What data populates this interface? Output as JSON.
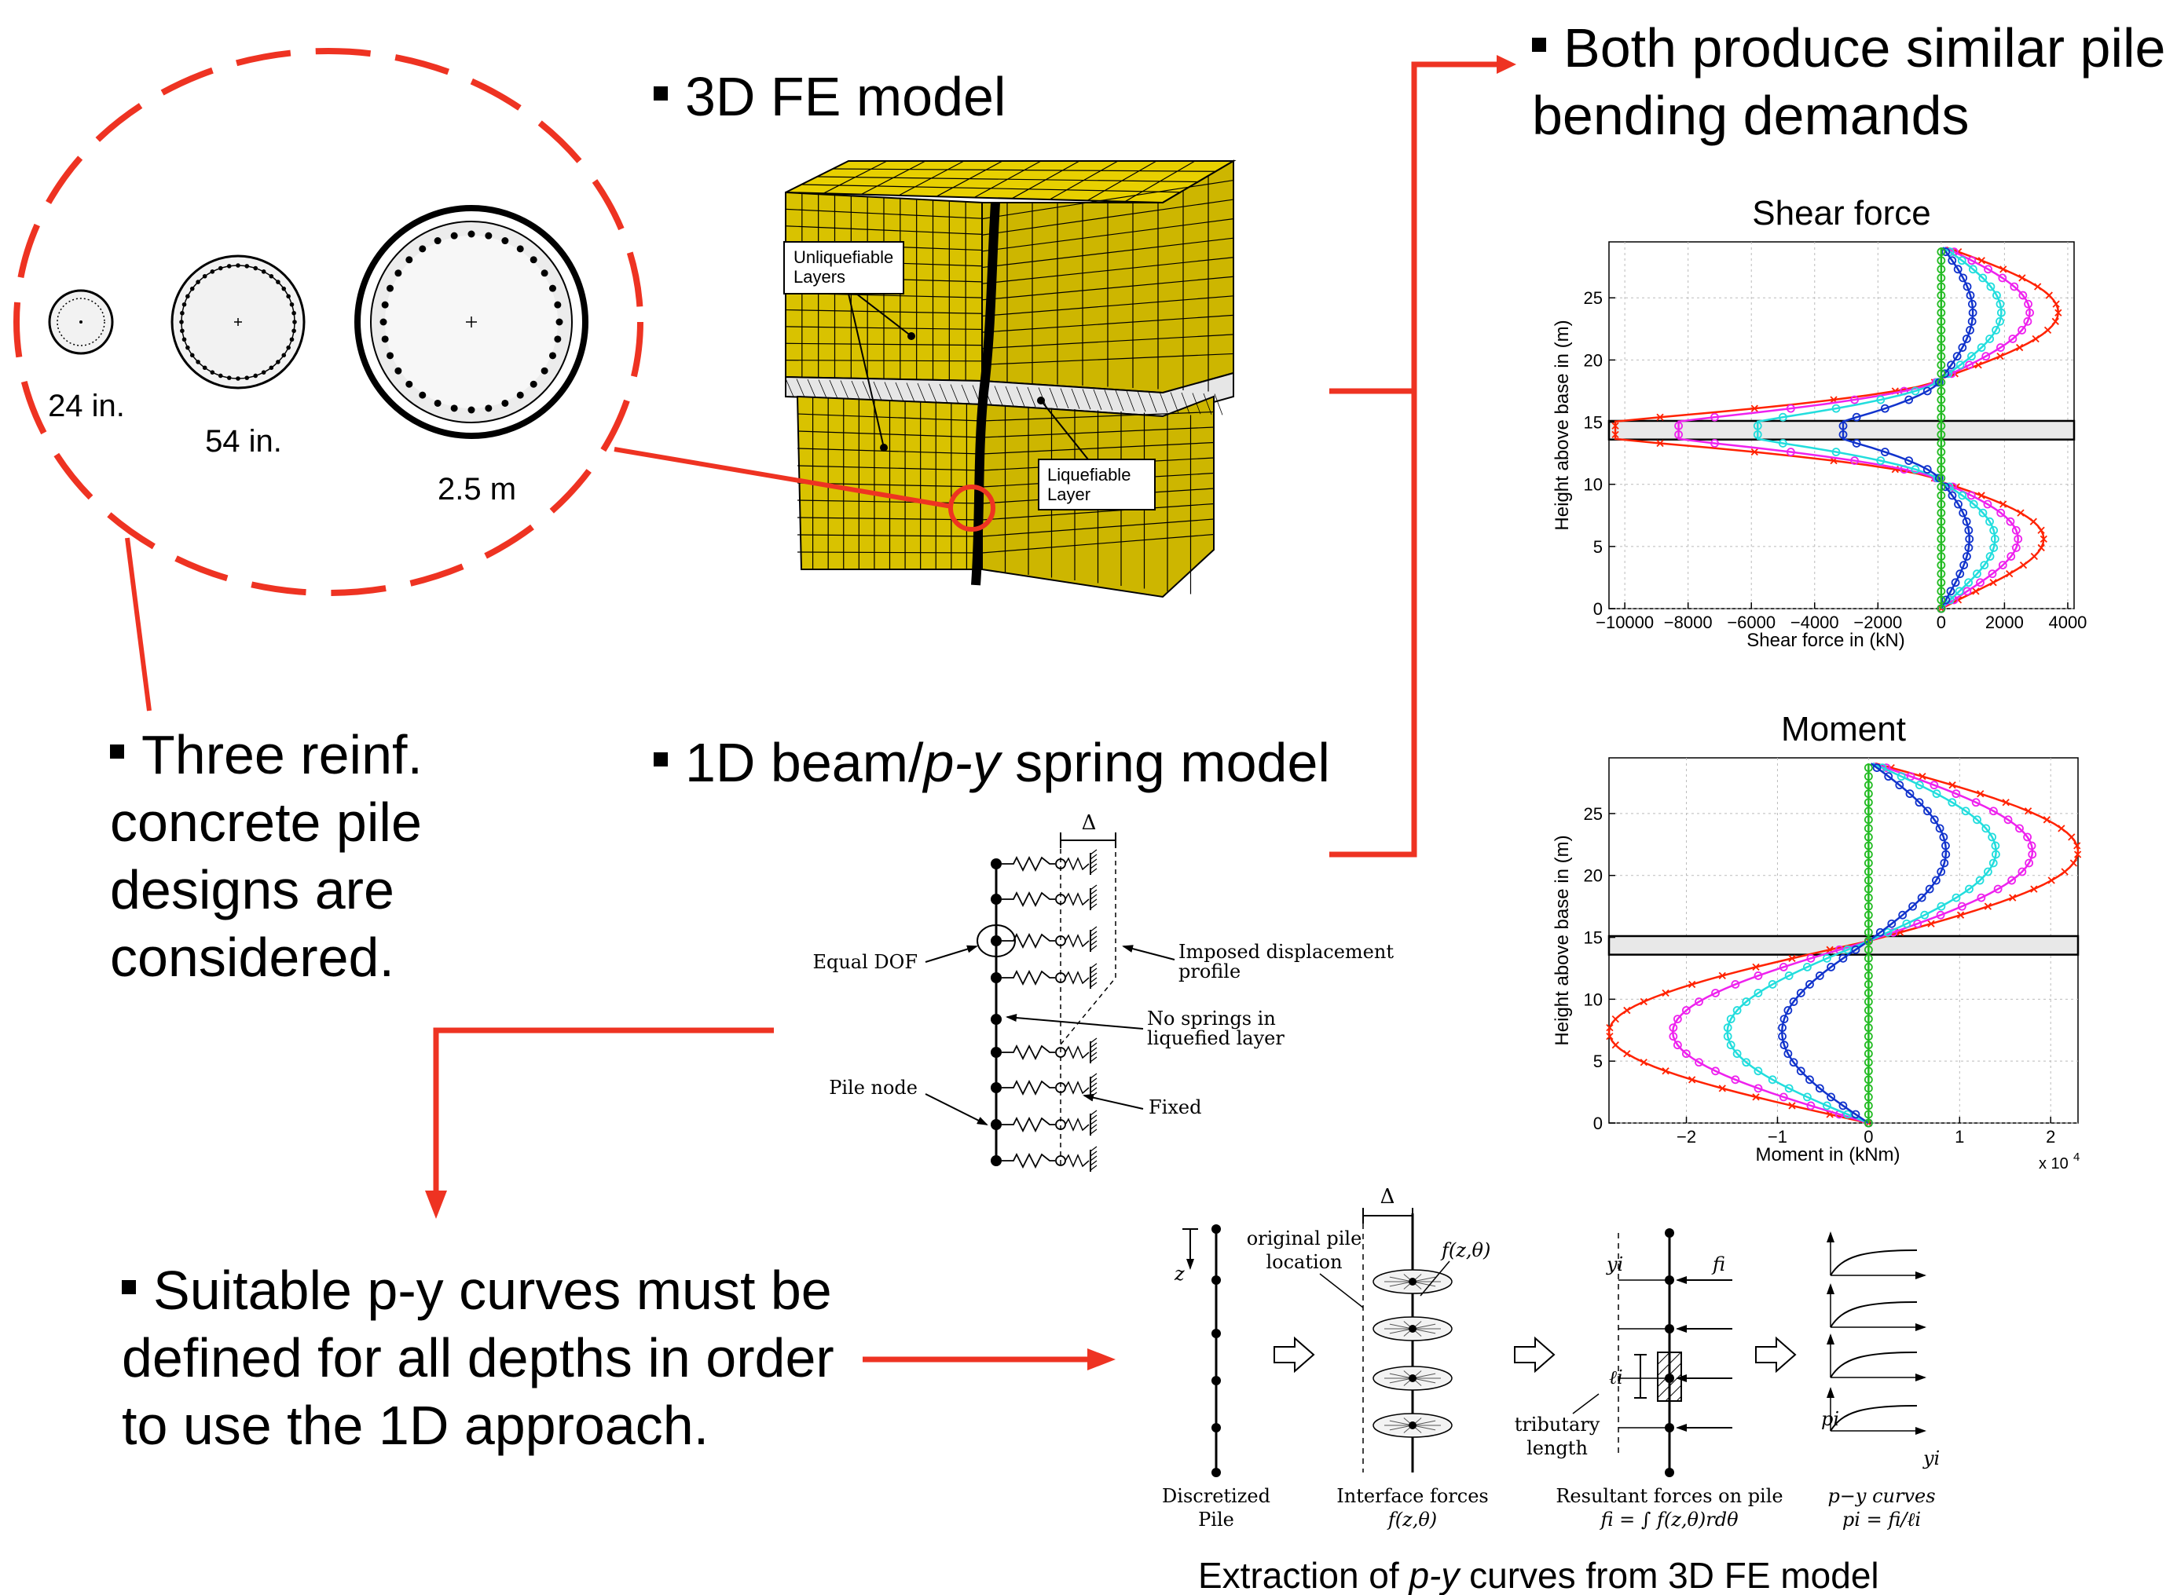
{
  "bullets": {
    "fe_model": "3D FE model",
    "beam_model_pre": "1D beam/",
    "beam_model_py": "p-y",
    "beam_model_post": " spring model",
    "similar_1": "Both produce similar pile",
    "similar_2": "bending demands",
    "three_1": "Three reinf.",
    "three_2": "concrete pile",
    "three_3": "designs are",
    "three_4": "considered.",
    "suitable_1": "Suitable p-y curves must be",
    "suitable_2": "defined for all depths in order",
    "suitable_3": "to use the 1D approach."
  },
  "piles": {
    "small": "24 in.",
    "medium": "54 in.",
    "large": "2.5 m"
  },
  "fe_labels": {
    "unliq_1": "Unliquefiable",
    "unliq_2": "Layers",
    "liq_1": "Liquefiable",
    "liq_2": "Layer"
  },
  "spring_labels": {
    "delta": "Δ",
    "equal_dof": "Equal DOF",
    "imposed_1": "Imposed displacement",
    "imposed_2": "profile",
    "nospring_1": "No springs in",
    "nospring_2": "liquefied layer",
    "pile_node": "Pile node",
    "fixed": "Fixed"
  },
  "extraction": {
    "caption_pre": "Extraction of ",
    "caption_py": "p-y",
    "caption_post": " curves from 3D FE model",
    "z": "z",
    "delta": "Δ",
    "orig_1": "original pile",
    "orig_2": "location",
    "fzt": "f(z,θ)",
    "yi": "yi",
    "fi": "fi",
    "li": "ℓi",
    "trib_1": "tributary",
    "trib_2": "length",
    "pi": "pi",
    "yi2": "yi",
    "disc_1": "Discretized",
    "disc_2": "Pile",
    "iface_1": "Interface forces",
    "iface_2": "f(z,θ)",
    "result_1": "Resultant forces on pile",
    "result_2": "fi = ∫ f(z,θ)rdθ",
    "py_1": "p−y curves",
    "py_2": "pi = fi/ℓi"
  },
  "colors": {
    "accent": "#ee3322",
    "mesh": "#ddc400",
    "mesh_dark": "#b39c00"
  },
  "chart_data": [
    {
      "type": "line",
      "title": "Shear force",
      "xlabel": "Shear force in (kN)",
      "ylabel": "Height above base in (m)",
      "xlim": [
        -10500,
        4200
      ],
      "ylim": [
        0,
        29.5
      ],
      "xticks": [
        -10000,
        -8000,
        -6000,
        -4000,
        -2000,
        0,
        2000,
        4000
      ],
      "xtick_labels": [
        "−10000",
        "−8000",
        "−6000",
        "−4000",
        "−2000",
        "0",
        "2000",
        "4000"
      ],
      "yticks": [
        0,
        5,
        10,
        15,
        20,
        25
      ],
      "ytick_labels": [
        "0",
        "5",
        "10",
        "15",
        "20",
        "25"
      ],
      "grid": true,
      "band": [
        13.6,
        15.1
      ],
      "series": [
        {
          "color": "#ff2200",
          "marker": "x",
          "peak_upper": 3700,
          "peak_lower": 4000,
          "trough": -10300
        },
        {
          "color": "#ee22ee",
          "marker": "o",
          "peak_upper": 2800,
          "peak_lower": 3000,
          "trough": -8300
        },
        {
          "color": "#22dddd",
          "marker": "o",
          "peak_upper": 1900,
          "peak_lower": 2100,
          "trough": -5800
        },
        {
          "color": "#1133cc",
          "marker": "o",
          "peak_upper": 1000,
          "peak_lower": 1100,
          "trough": -3100
        },
        {
          "color": "#22bb22",
          "marker": "o",
          "peak_upper": 0,
          "peak_lower": 0,
          "trough": 0
        }
      ]
    },
    {
      "type": "line",
      "title": "Moment",
      "xlabel": "Moment in (kNm)",
      "ylabel": "Height above base in (m)",
      "xlim": [
        -2.85,
        2.3
      ],
      "ylim": [
        0,
        29.5
      ],
      "xticks": [
        -2,
        -1,
        0,
        1,
        2
      ],
      "xtick_labels": [
        "−2",
        "−1",
        "0",
        "1",
        "2"
      ],
      "yticks": [
        0,
        5,
        10,
        15,
        20,
        25
      ],
      "ytick_labels": [
        "0",
        "5",
        "10",
        "15",
        "20",
        "25"
      ],
      "x_multiplier": "x 10",
      "x_multiplier_exp": "4",
      "grid": true,
      "band": [
        13.6,
        15.1
      ],
      "series": [
        {
          "color": "#ff2200",
          "marker": "x",
          "peak": 2.3,
          "trough": -2.85
        },
        {
          "color": "#ee22ee",
          "marker": "o",
          "peak": 1.8,
          "trough": -2.15
        },
        {
          "color": "#22dddd",
          "marker": "o",
          "peak": 1.4,
          "trough": -1.55
        },
        {
          "color": "#1133cc",
          "marker": "o",
          "peak": 0.85,
          "trough": -0.95
        },
        {
          "color": "#22bb22",
          "marker": "o",
          "peak": 0,
          "trough": 0
        }
      ]
    }
  ]
}
